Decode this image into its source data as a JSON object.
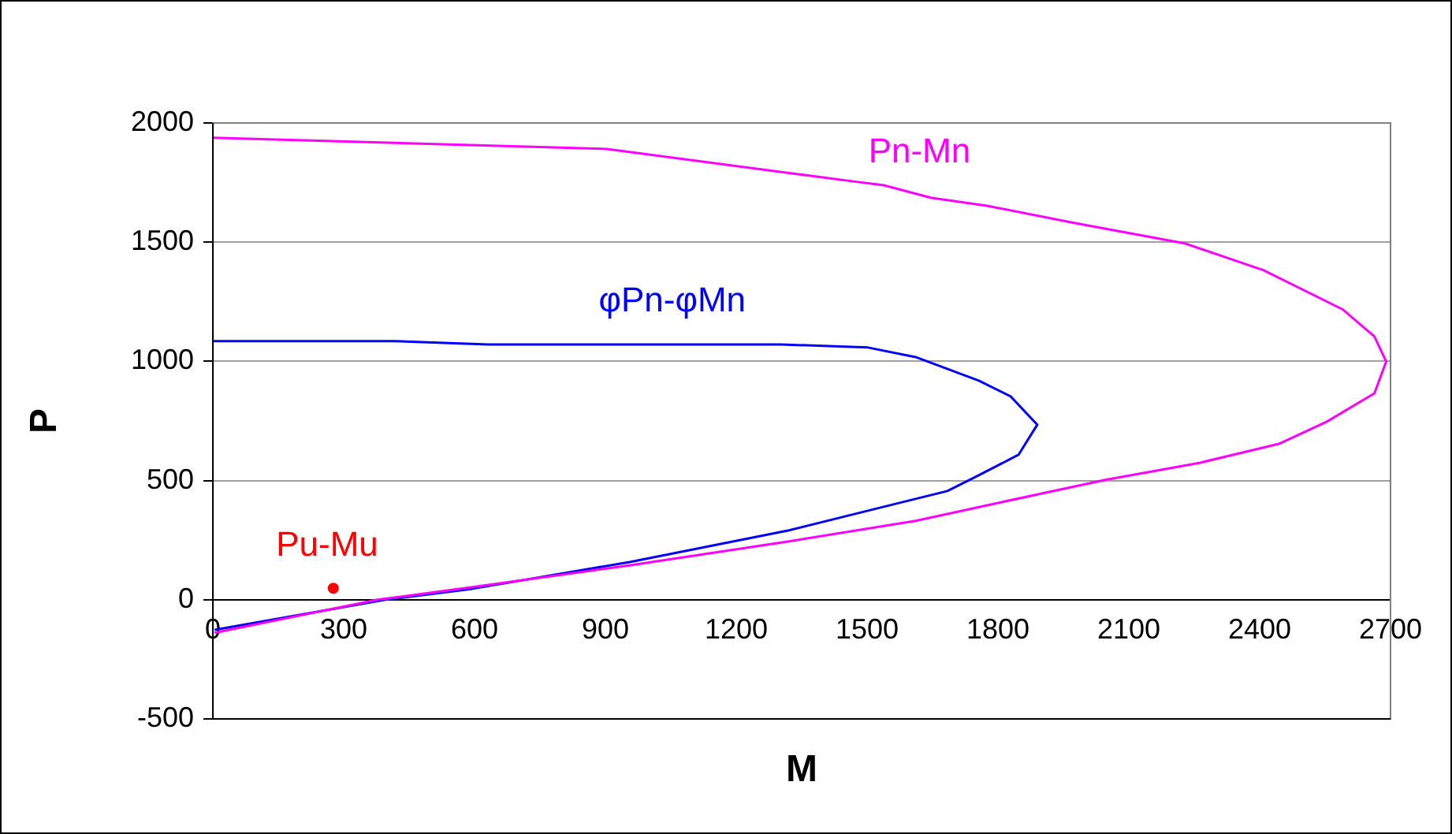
{
  "chart_data": {
    "type": "line",
    "xlabel": "M",
    "ylabel": "P",
    "xlim": [
      0,
      2700
    ],
    "xticks": [
      0,
      300,
      600,
      900,
      1200,
      1500,
      1800,
      2100,
      2400,
      2700
    ],
    "ylim": [
      -500,
      2000
    ],
    "yticks": [
      -500,
      0,
      500,
      1000,
      1500,
      2000
    ],
    "grid": "y",
    "legend": false,
    "series": [
      {
        "marker": "none",
        "name": "Pn-Mn",
        "color": "#ff00ff",
        "x": [
          0,
          903,
          1451,
          1538,
          1647,
          1774,
          1974,
          2228,
          2409,
          2591,
          2663,
          2690,
          2663,
          2554,
          2446,
          2264,
          2046,
          1792,
          1611,
          1321,
          958,
          595,
          377,
          4
        ],
        "values": [
          1938,
          1891,
          1759,
          1739,
          1686,
          1653,
          1581,
          1495,
          1382,
          1217,
          1104,
          999,
          866,
          747,
          655,
          575,
          503,
          403,
          331,
          245,
          145,
          53,
          0,
          -139
        ]
      },
      {
        "marker": "none",
        "name": "φPn-φMn",
        "color": "#0000ff",
        "x": [
          0,
          414,
          631,
          1303,
          1502,
          1611,
          1756,
          1829,
          1890,
          1847,
          1756,
          1684,
          1538,
          1321,
          958,
          595,
          396,
          4
        ],
        "values": [
          1085,
          1085,
          1071,
          1071,
          1058,
          1018,
          919,
          853,
          734,
          608,
          522,
          456,
          390,
          291,
          159,
          46,
          0,
          -126
        ]
      },
      {
        "type": "scatter",
        "marker": "circle",
        "name": "Pu-Mu",
        "color": "#ff0000",
        "x": [
          276
        ],
        "values": [
          48
        ]
      }
    ]
  }
}
